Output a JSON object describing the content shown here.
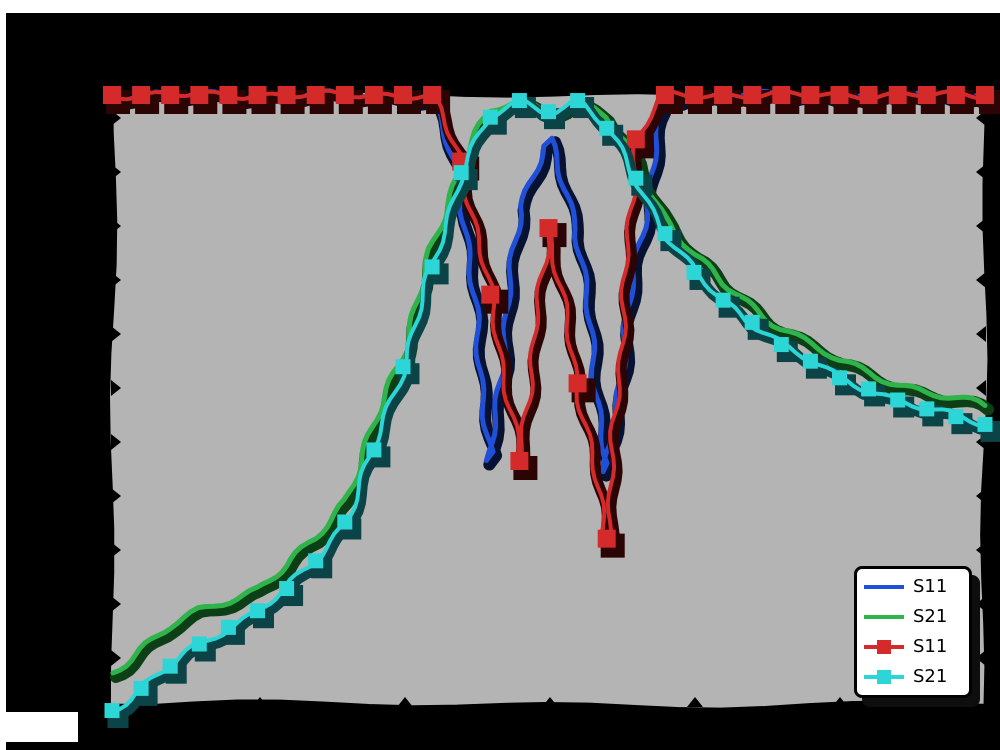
{
  "legend": {
    "items": [
      {
        "label": "S11",
        "color": "#2050d8",
        "marker": "none"
      },
      {
        "label": "S21",
        "color": "#2fb44b",
        "marker": "none"
      },
      {
        "label": "S11",
        "color": "#d42a2a",
        "marker": "square"
      },
      {
        "label": "S21",
        "color": "#2cd6d6",
        "marker": "square"
      }
    ],
    "position": "lower right"
  },
  "colors": {
    "page_bg": "#ffffff",
    "figure_bg": "#000000",
    "plot_bg": "#b4b4b4",
    "legend_bg": "#ffffff",
    "tick": "#000000"
  },
  "chart_data": {
    "type": "line",
    "title": "",
    "xlabel": "",
    "ylabel": "",
    "x_GHz": [
      0.0,
      0.2,
      0.4,
      0.6,
      0.8,
      1.0,
      1.2,
      1.4,
      1.6,
      1.8,
      2.0,
      2.2,
      2.4,
      2.6,
      2.8,
      3.0,
      3.2,
      3.4,
      3.6,
      3.8,
      4.0,
      4.2,
      4.4,
      4.6,
      4.8,
      5.0,
      5.2,
      5.4,
      5.6,
      5.8,
      6.0
    ],
    "series": [
      {
        "name": "S11",
        "style": "line",
        "color": "#2050d8",
        "shadow": "#071233",
        "values_dB": [
          0,
          0,
          0,
          0,
          0,
          0,
          0,
          0,
          0,
          0,
          0,
          -0.5,
          -8,
          -33,
          -10,
          -4,
          -12,
          -34,
          -15,
          -0.5,
          0,
          0,
          0,
          0,
          0,
          0,
          0,
          0,
          0,
          0,
          0
        ]
      },
      {
        "name": "S21",
        "style": "line",
        "color": "#2fb44b",
        "shadow": "#0d3f17",
        "values_dB": [
          -52,
          -50,
          -48,
          -46.5,
          -45.5,
          -44.5,
          -42.5,
          -40,
          -36.5,
          -30,
          -23,
          -14,
          -6,
          -1.5,
          -0.5,
          -1.5,
          -0.5,
          -2,
          -6,
          -11,
          -14.5,
          -17,
          -19,
          -21,
          -22.5,
          -24,
          -25,
          -26,
          -26.8,
          -27.4,
          -28
        ]
      },
      {
        "name": "S11",
        "style": "line+square-markers",
        "color": "#d42a2a",
        "shadow": "#2c0404",
        "values_dB": [
          0,
          0,
          0,
          0,
          0,
          0,
          0,
          0,
          0,
          0,
          0,
          0,
          -6,
          -18,
          -33,
          -12,
          -26,
          -40,
          -4,
          0,
          0,
          0,
          0,
          0,
          0,
          0,
          0,
          0,
          0,
          0,
          0
        ]
      },
      {
        "name": "S21",
        "style": "line+square-markers",
        "color": "#2cd6d6",
        "shadow": "#0b4347",
        "values_dB": [
          -55.5,
          -53.5,
          -51.5,
          -49.5,
          -48,
          -46.5,
          -44.5,
          -42,
          -38.5,
          -32,
          -24.5,
          -15.5,
          -7,
          -2,
          -0.5,
          -1.5,
          -0.5,
          -3,
          -7.5,
          -12.5,
          -16,
          -18.5,
          -20.5,
          -22.5,
          -24,
          -25.5,
          -26.5,
          -27.5,
          -28.3,
          -29,
          -29.7
        ]
      }
    ],
    "xlim": [
      0,
      6
    ],
    "ylim": [
      -55,
      0
    ],
    "grid": false,
    "axis_tick_labels_visible": false,
    "legend_position": "lower right"
  }
}
